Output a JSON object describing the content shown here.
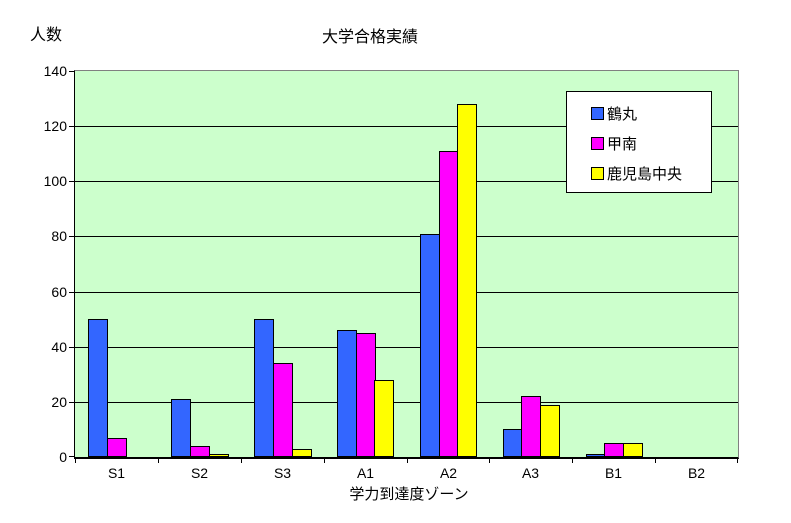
{
  "chart_data": {
    "type": "bar",
    "title": "大学合格実績",
    "y_axis_title": "人数",
    "x_axis_title": "学力到達度ゾーン",
    "categories": [
      "S1",
      "S2",
      "S3",
      "A1",
      "A2",
      "A3",
      "B1",
      "B2"
    ],
    "series": [
      {
        "name": "鶴丸",
        "color": "#3366FF",
        "values": [
          50,
          21,
          50,
          46,
          81,
          10,
          1,
          0
        ]
      },
      {
        "name": "甲南",
        "color": "#FF00FF",
        "values": [
          7,
          4,
          34,
          45,
          111,
          22,
          5,
          0
        ]
      },
      {
        "name": "鹿児島中央",
        "color": "#FFFF00",
        "values": [
          0,
          1,
          3,
          28,
          128,
          19,
          5,
          0
        ]
      }
    ],
    "ylim": [
      0,
      140
    ],
    "y_tick_step": 20,
    "y_ticks": [
      0,
      20,
      40,
      60,
      80,
      100,
      120,
      140
    ],
    "grid": "horizontal-major",
    "legend_position": "top-right-inside",
    "plot_bg": "#CCFFCC",
    "grid_color": "#000000",
    "plot_border_color": "#808080",
    "axis_color": "#000000",
    "bar_border_color": "#000000"
  }
}
